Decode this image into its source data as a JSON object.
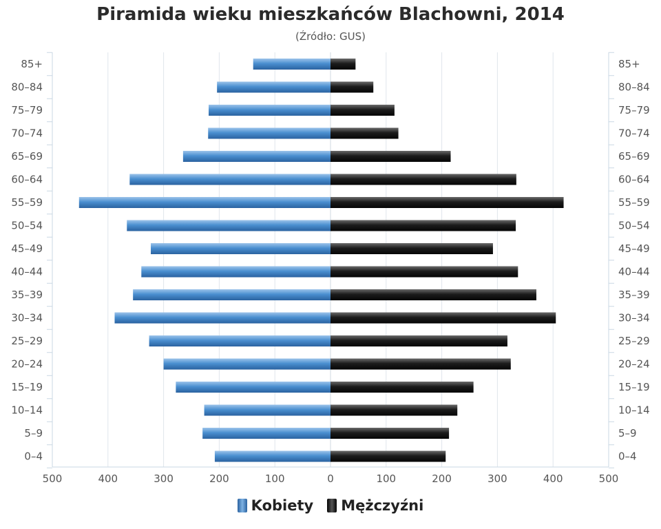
{
  "chart_data": {
    "type": "bar",
    "orientation": "horizontal-population-pyramid",
    "title": "Piramida wieku mieszkańców Blachowni, 2014",
    "subtitle": "(Źródło: GUS)",
    "categories": [
      "85+",
      "80–84",
      "75–79",
      "70–74",
      "65–69",
      "60–64",
      "55–59",
      "50–54",
      "45–49",
      "40–44",
      "35–39",
      "30–34",
      "25–29",
      "20–24",
      "15–19",
      "10–14",
      "5–9",
      "0–4"
    ],
    "series": [
      {
        "name": "Kobiety",
        "side": "left",
        "color": "#3f7fc0",
        "values": [
          139,
          204,
          219,
          220,
          265,
          361,
          452,
          366,
          323,
          340,
          355,
          388,
          326,
          300,
          278,
          227,
          230,
          208
        ]
      },
      {
        "name": "Mężczyźni",
        "side": "right",
        "color": "#1e1e1e",
        "values": [
          45,
          77,
          115,
          122,
          216,
          334,
          419,
          333,
          292,
          337,
          370,
          405,
          318,
          324,
          257,
          228,
          213,
          207
        ]
      }
    ],
    "x_ticks": [
      500,
      400,
      300,
      200,
      100,
      0,
      100,
      200,
      300,
      400,
      500
    ],
    "xlim": [
      -500,
      500
    ],
    "grid": true,
    "legend_position": "bottom-center"
  }
}
